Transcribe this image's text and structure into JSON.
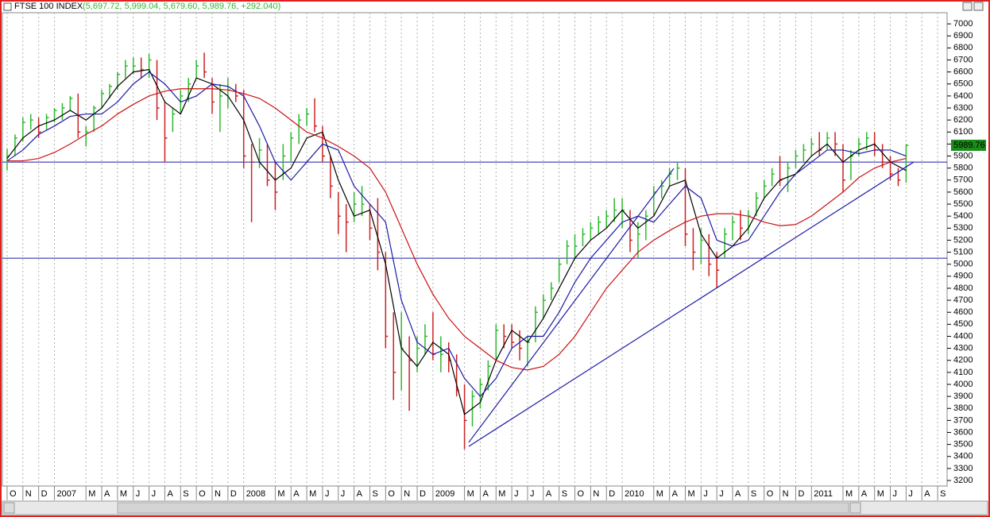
{
  "chart_data": {
    "type": "ohlc",
    "title": "FTSE 100 INDEX",
    "ohlc_label": "(5,697.72, 5,999.04, 5,679.60, 5,989.76, +292.040)",
    "last_label": "5989.76",
    "up_color": "#2eb82e",
    "down_color": "#cc2222",
    "x": [
      0,
      0.5,
      1,
      1.5,
      2,
      2.5,
      3,
      3.5,
      4,
      4.5,
      5,
      5.5,
      6,
      6.5,
      7,
      7.5,
      8,
      8.5,
      9,
      9.5,
      10,
      10.5,
      11,
      11.5,
      12,
      12.5,
      13,
      13.5,
      14,
      14.5,
      15,
      15.5,
      16,
      16.5,
      17,
      17.5,
      18,
      18.5,
      19,
      19.5,
      20,
      20.5,
      21,
      21.5,
      22,
      22.5,
      23,
      23.5,
      24,
      24.5,
      25,
      25.5,
      26,
      26.5,
      27,
      27.5,
      28,
      28.5,
      29,
      29.5,
      30,
      30.5,
      31,
      31.5,
      32,
      32.5,
      33,
      33.5,
      34,
      34.5,
      35,
      35.5,
      36,
      36.5,
      37,
      37.5,
      38,
      38.5,
      39,
      39.5,
      40,
      40.5,
      41,
      41.5,
      42,
      42.5,
      43,
      43.5,
      44,
      44.5,
      45,
      45.5,
      46,
      46.5,
      47,
      47.5,
      48,
      48.5,
      49,
      49.5,
      50,
      50.5,
      51,
      51.5,
      52,
      52.5,
      53,
      53.5,
      54,
      54.5,
      55,
      55.5,
      56,
      56.5,
      57
    ],
    "high": [
      5960,
      6080,
      6220,
      6250,
      6220,
      6250,
      6300,
      6340,
      6400,
      6420,
      6150,
      6320,
      6450,
      6500,
      6600,
      6700,
      6720,
      6720,
      6750,
      6700,
      6350,
      6300,
      6450,
      6550,
      6700,
      6760,
      6550,
      6500,
      6550,
      6500,
      6450,
      6000,
      6050,
      6000,
      5850,
      6000,
      6100,
      6250,
      6300,
      6380,
      6150,
      5900,
      5600,
      5500,
      5600,
      5650,
      5500,
      5550,
      5100,
      4600,
      4600,
      4400,
      4400,
      4500,
      4600,
      4400,
      4350,
      4250,
      4000,
      3950,
      4050,
      4200,
      4500,
      4500,
      4500,
      4450,
      4400,
      4650,
      4750,
      4850,
      5050,
      5200,
      5250,
      5300,
      5350,
      5400,
      5450,
      5550,
      5550,
      5450,
      5350,
      5450,
      5650,
      5700,
      5800,
      5850,
      5800,
      5300,
      5300,
      5250,
      5100,
      5300,
      5400,
      5450,
      5450,
      5600,
      5700,
      5800,
      5900,
      5850,
      5950,
      6000,
      6050,
      6100,
      6100,
      6100,
      6000,
      5950,
      6050,
      6100,
      6100,
      6000,
      5900,
      5800,
      5999.04
    ],
    "low": [
      5780,
      5900,
      6020,
      6120,
      6050,
      6120,
      6180,
      6200,
      6280,
      6050,
      5980,
      6100,
      6300,
      6380,
      6450,
      6550,
      6580,
      6550,
      6550,
      6200,
      5850,
      6100,
      6250,
      6350,
      6550,
      6550,
      6250,
      6100,
      6300,
      6350,
      5800,
      5350,
      5800,
      5650,
      5450,
      5700,
      5850,
      6000,
      6150,
      6100,
      5850,
      5550,
      5250,
      5100,
      5350,
      5400,
      5200,
      4950,
      4300,
      3870,
      3950,
      3780,
      4100,
      4250,
      4200,
      4100,
      4100,
      3900,
      3460,
      3650,
      3800,
      3950,
      4200,
      4300,
      4300,
      4200,
      4150,
      4350,
      4550,
      4700,
      4850,
      5000,
      5050,
      5150,
      5200,
      5250,
      5300,
      5350,
      5300,
      5100,
      5050,
      5200,
      5400,
      5550,
      5650,
      5700,
      5150,
      4950,
      5000,
      4900,
      4800,
      5050,
      5200,
      5200,
      5250,
      5400,
      5550,
      5650,
      5650,
      5600,
      5800,
      5850,
      5900,
      5900,
      5950,
      5900,
      5600,
      5700,
      5900,
      5950,
      5900,
      5800,
      5700,
      5650,
      5679.6
    ],
    "close": [
      5900,
      6050,
      6180,
      6200,
      6100,
      6220,
      6280,
      6300,
      6380,
      6100,
      6100,
      6300,
      6420,
      6480,
      6580,
      6650,
      6650,
      6620,
      6700,
      6300,
      6050,
      6250,
      6400,
      6500,
      6650,
      6600,
      6350,
      6400,
      6450,
      6400,
      5900,
      5850,
      5950,
      5700,
      5600,
      5900,
      6050,
      6200,
      6250,
      6150,
      5900,
      5650,
      5400,
      5350,
      5500,
      5500,
      5300,
      5100,
      4400,
      4100,
      4300,
      4200,
      4300,
      4400,
      4250,
      4250,
      4200,
      3950,
      3700,
      3900,
      4000,
      4150,
      4450,
      4400,
      4350,
      4300,
      4350,
      4600,
      4700,
      4800,
      5000,
      5150,
      5150,
      5250,
      5300,
      5350,
      5400,
      5450,
      5450,
      5200,
      5250,
      5400,
      5600,
      5650,
      5750,
      5800,
      5250,
      5100,
      5200,
      5000,
      4950,
      5250,
      5350,
      5300,
      5400,
      5550,
      5650,
      5750,
      5700,
      5800,
      5900,
      5950,
      6000,
      5950,
      6050,
      6000,
      5700,
      5900,
      6000,
      6050,
      5950,
      5850,
      5750,
      5700,
      5989.76
    ],
    "series": [
      {
        "color": "#000000",
        "x": [
          0,
          1,
          2,
          3,
          4,
          5,
          6,
          7,
          8,
          9,
          10,
          11,
          12,
          13,
          14,
          15,
          16,
          17,
          18,
          19,
          20,
          21,
          22,
          23,
          24,
          25,
          26,
          27,
          28,
          29,
          30,
          31,
          32,
          33,
          34,
          35,
          36,
          37,
          38,
          39,
          40,
          41,
          42,
          43,
          44,
          45,
          46,
          47,
          48,
          49,
          50,
          51,
          52,
          53,
          54,
          55,
          56,
          57
        ],
        "values": [
          5880,
          6050,
          6150,
          6200,
          6280,
          6200,
          6300,
          6480,
          6600,
          6620,
          6350,
          6250,
          6550,
          6500,
          6400,
          6200,
          5850,
          5700,
          5800,
          6050,
          6100,
          5700,
          5400,
          5450,
          5000,
          4300,
          4150,
          4350,
          4250,
          3750,
          3850,
          4200,
          4450,
          4350,
          4550,
          4800,
          5050,
          5200,
          5300,
          5450,
          5300,
          5400,
          5650,
          5700,
          5250,
          5050,
          5150,
          5300,
          5550,
          5700,
          5750,
          5900,
          6000,
          5850,
          5950,
          6000,
          5850,
          5780
        ]
      },
      {
        "color": "#1a1aa6",
        "x": [
          0,
          1,
          2,
          3,
          4,
          5,
          6,
          7,
          8,
          9,
          10,
          11,
          12,
          13,
          14,
          15,
          16,
          17,
          18,
          19,
          20,
          21,
          22,
          23,
          24,
          25,
          26,
          27,
          28,
          29,
          30,
          31,
          32,
          33,
          34,
          35,
          36,
          37,
          38,
          39,
          40,
          41,
          42,
          43,
          44,
          45,
          46,
          47,
          48,
          49,
          50,
          51,
          52,
          53,
          54,
          55,
          56,
          57
        ],
        "values": [
          5860,
          5950,
          6080,
          6150,
          6230,
          6250,
          6250,
          6350,
          6500,
          6600,
          6500,
          6350,
          6400,
          6500,
          6480,
          6400,
          6150,
          5850,
          5700,
          5850,
          6000,
          5950,
          5650,
          5500,
          5350,
          4700,
          4350,
          4250,
          4300,
          4050,
          3900,
          4050,
          4300,
          4400,
          4400,
          4600,
          4850,
          5050,
          5200,
          5350,
          5400,
          5350,
          5500,
          5650,
          5550,
          5200,
          5150,
          5200,
          5400,
          5600,
          5750,
          5850,
          5950,
          5950,
          5920,
          5950,
          5950,
          5900
        ]
      },
      {
        "color": "#cc1111",
        "x": [
          0,
          1,
          2,
          3,
          4,
          5,
          6,
          7,
          8,
          9,
          10,
          11,
          12,
          13,
          14,
          15,
          16,
          17,
          18,
          19,
          20,
          21,
          22,
          23,
          24,
          25,
          26,
          27,
          28,
          29,
          30,
          31,
          32,
          33,
          34,
          35,
          36,
          37,
          38,
          39,
          40,
          41,
          42,
          43,
          44,
          45,
          46,
          47,
          48,
          49,
          50,
          51,
          52,
          53,
          54,
          55,
          56,
          57
        ],
        "values": [
          5860,
          5860,
          5880,
          5930,
          6000,
          6080,
          6150,
          6250,
          6330,
          6400,
          6440,
          6460,
          6460,
          6460,
          6450,
          6420,
          6380,
          6300,
          6200,
          6100,
          6050,
          5980,
          5900,
          5800,
          5600,
          5300,
          5000,
          4750,
          4550,
          4400,
          4300,
          4200,
          4140,
          4120,
          4150,
          4250,
          4400,
          4600,
          4800,
          4950,
          5100,
          5200,
          5280,
          5350,
          5400,
          5420,
          5420,
          5400,
          5350,
          5320,
          5330,
          5400,
          5500,
          5600,
          5720,
          5800,
          5850,
          5880
        ]
      }
    ],
    "hlines": [
      5850,
      5050
    ],
    "line_color": "#1a1aa6",
    "trendlines": [
      {
        "x": [
          29.27,
          57.48
        ],
        "values": [
          3484,
          5850
        ]
      },
      {
        "x": [
          29.27,
          42.27
        ],
        "values": [
          3517,
          5797
        ]
      }
    ],
    "xlim": [
      -0.3,
      59.6
    ],
    "ylim": [
      3154,
      7093
    ],
    "xticks": [
      {
        "value": 0,
        "label": "O"
      },
      {
        "value": 1,
        "label": "N"
      },
      {
        "value": 2,
        "label": "D"
      },
      {
        "value": 3,
        "label": "2007"
      },
      {
        "value": 5,
        "label": "M"
      },
      {
        "value": 6,
        "label": "A"
      },
      {
        "value": 7,
        "label": "M"
      },
      {
        "value": 8,
        "label": "J"
      },
      {
        "value": 9,
        "label": "J"
      },
      {
        "value": 10,
        "label": "A"
      },
      {
        "value": 11,
        "label": "S"
      },
      {
        "value": 12,
        "label": "O"
      },
      {
        "value": 13,
        "label": "N"
      },
      {
        "value": 14,
        "label": "D"
      },
      {
        "value": 15,
        "label": "2008"
      },
      {
        "value": 17,
        "label": "M"
      },
      {
        "value": 18,
        "label": "A"
      },
      {
        "value": 19,
        "label": "M"
      },
      {
        "value": 20,
        "label": "J"
      },
      {
        "value": 21,
        "label": "J"
      },
      {
        "value": 22,
        "label": "A"
      },
      {
        "value": 23,
        "label": "S"
      },
      {
        "value": 24,
        "label": "O"
      },
      {
        "value": 25,
        "label": "N"
      },
      {
        "value": 26,
        "label": "D"
      },
      {
        "value": 27,
        "label": "2009"
      },
      {
        "value": 29,
        "label": "M"
      },
      {
        "value": 30,
        "label": "A"
      },
      {
        "value": 31,
        "label": "M"
      },
      {
        "value": 32,
        "label": "J"
      },
      {
        "value": 33,
        "label": "J"
      },
      {
        "value": 34,
        "label": "A"
      },
      {
        "value": 35,
        "label": "S"
      },
      {
        "value": 36,
        "label": "O"
      },
      {
        "value": 37,
        "label": "N"
      },
      {
        "value": 38,
        "label": "D"
      },
      {
        "value": 39,
        "label": "2010"
      },
      {
        "value": 41,
        "label": "M"
      },
      {
        "value": 42,
        "label": "A"
      },
      {
        "value": 43,
        "label": "M"
      },
      {
        "value": 44,
        "label": "J"
      },
      {
        "value": 45,
        "label": "J"
      },
      {
        "value": 46,
        "label": "A"
      },
      {
        "value": 47,
        "label": "S"
      },
      {
        "value": 48,
        "label": "O"
      },
      {
        "value": 49,
        "label": "N"
      },
      {
        "value": 50,
        "label": "D"
      },
      {
        "value": 51,
        "label": "2011"
      },
      {
        "value": 53,
        "label": "M"
      },
      {
        "value": 54,
        "label": "A"
      },
      {
        "value": 55,
        "label": "M"
      },
      {
        "value": 56,
        "label": "J"
      },
      {
        "value": 57,
        "label": "J"
      },
      {
        "value": 58,
        "label": "A"
      },
      {
        "value": 59,
        "label": "S"
      }
    ],
    "yticks": [
      3200,
      3300,
      3400,
      3500,
      3600,
      3700,
      3800,
      3900,
      4000,
      4100,
      4200,
      4300,
      4400,
      4500,
      4600,
      4700,
      4800,
      4900,
      5000,
      5100,
      5200,
      5300,
      5400,
      5500,
      5600,
      5700,
      5800,
      5900,
      6000,
      6100,
      6200,
      6300,
      6400,
      6500,
      6600,
      6700,
      6800,
      6900,
      7000
    ],
    "grid": true
  }
}
